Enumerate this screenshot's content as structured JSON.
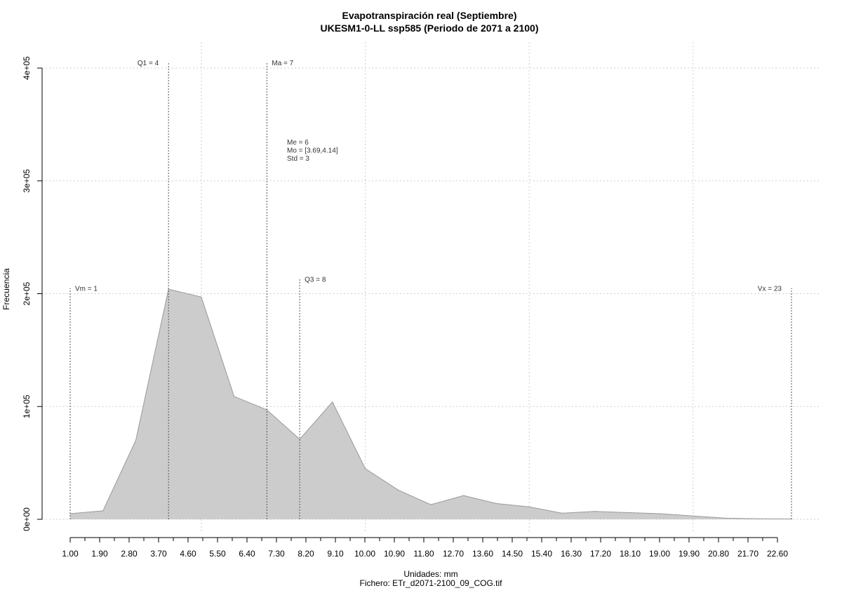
{
  "chart_data": {
    "type": "area",
    "title_line1": "Evapotranspiración real (Septiembre)",
    "title_line2": "UKESM1-0-LL ssp585 (Periodo de 2071 a 2100)",
    "xlabel": "Unidades: mm",
    "file_label": "Fichero: ETr_d2071-2100_09_COG.tif",
    "ylabel": "Frecuencia",
    "xlim": [
      1.0,
      23.0
    ],
    "ylim": [
      0,
      400000
    ],
    "x_ticks": [
      "1.00",
      "1.90",
      "2.80",
      "3.70",
      "4.60",
      "5.50",
      "6.40",
      "7.30",
      "8.20",
      "9.10",
      "10.00",
      "10.90",
      "11.80",
      "12.70",
      "13.60",
      "14.50",
      "15.40",
      "16.30",
      "17.20",
      "18.10",
      "19.00",
      "19.90",
      "20.80",
      "21.70",
      "22.60"
    ],
    "y_ticks": [
      {
        "value": 0,
        "label": "0e+00"
      },
      {
        "value": 100000,
        "label": "1e+05"
      },
      {
        "value": 200000,
        "label": "2e+05"
      },
      {
        "value": 300000,
        "label": "3e+05"
      },
      {
        "value": 400000,
        "label": "4e+05"
      }
    ],
    "grid": true,
    "fill_color": "#cccccc",
    "line_color": "#999999",
    "series": [
      {
        "x": [
          1.0,
          2.0,
          3.0,
          4.0,
          5.0,
          6.0,
          7.0,
          8.0,
          9.0,
          10.0,
          11.0,
          12.0,
          13.0,
          14.0,
          15.0,
          16.0,
          17.0,
          18.0,
          19.0,
          20.0,
          21.0,
          22.0,
          23.0
        ],
        "values": [
          5000,
          7500,
          70000,
          204000,
          197000,
          109000,
          97000,
          71000,
          104000,
          45000,
          26000,
          13000,
          21000,
          14000,
          11000,
          5500,
          7000,
          6000,
          5000,
          3000,
          1000,
          500,
          300
        ]
      }
    ],
    "markers": [
      {
        "label": "Vm = 1",
        "x": 1,
        "y_top": 205000,
        "label_side": "right"
      },
      {
        "label": "Q1 = 4",
        "x": 4,
        "y_top": 405000,
        "label_side": "left"
      },
      {
        "label": "Ma = 7",
        "x": 7,
        "y_top": 405000,
        "label_side": "right"
      },
      {
        "label": "Q3 = 8",
        "x": 8,
        "y_top": 213000,
        "label_side": "right"
      },
      {
        "label": "Vx = 23",
        "x": 23,
        "y_top": 205000,
        "label_side": "left"
      }
    ],
    "stats_lines": [
      "Me = 6",
      "Mo = [3.69,4.14]",
      "Std = 3"
    ]
  }
}
